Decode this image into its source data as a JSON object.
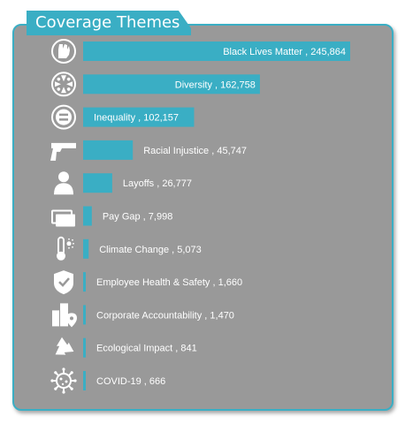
{
  "header": {
    "title": "Coverage Themes"
  },
  "colors": {
    "accent": "#3aaec4",
    "panel": "#999999",
    "icon": "#ffffff",
    "text": "#ffffff"
  },
  "chart_data": {
    "type": "bar",
    "orientation": "horizontal",
    "title": "Coverage Themes",
    "xlabel": "",
    "ylabel": "",
    "categories": [
      "Black Lives Matter",
      "Diversity",
      "Inequality",
      "Racial Injustice",
      "Layoffs",
      "Pay Gap",
      "Climate Change",
      "Employee Health & Safety",
      "Corporate Accountability",
      "Ecological Impact",
      "COVID-19"
    ],
    "values": [
      245864,
      162758,
      102157,
      45747,
      26777,
      7998,
      5073,
      1660,
      1470,
      841,
      666
    ],
    "value_labels": [
      "245,864",
      "162,758",
      "102,157",
      "45,747",
      "26,777",
      "7,998",
      "5,073",
      "1,660",
      "1,470",
      "841",
      "666"
    ],
    "icons": [
      "raised-fist-icon",
      "diversity-icon",
      "equals-icon",
      "gun-icon",
      "person-icon",
      "money-icon",
      "thermometer-icon",
      "shield-icon",
      "buildings-icon",
      "recycle-icon",
      "virus-icon"
    ],
    "grid": false,
    "legend": "none"
  }
}
